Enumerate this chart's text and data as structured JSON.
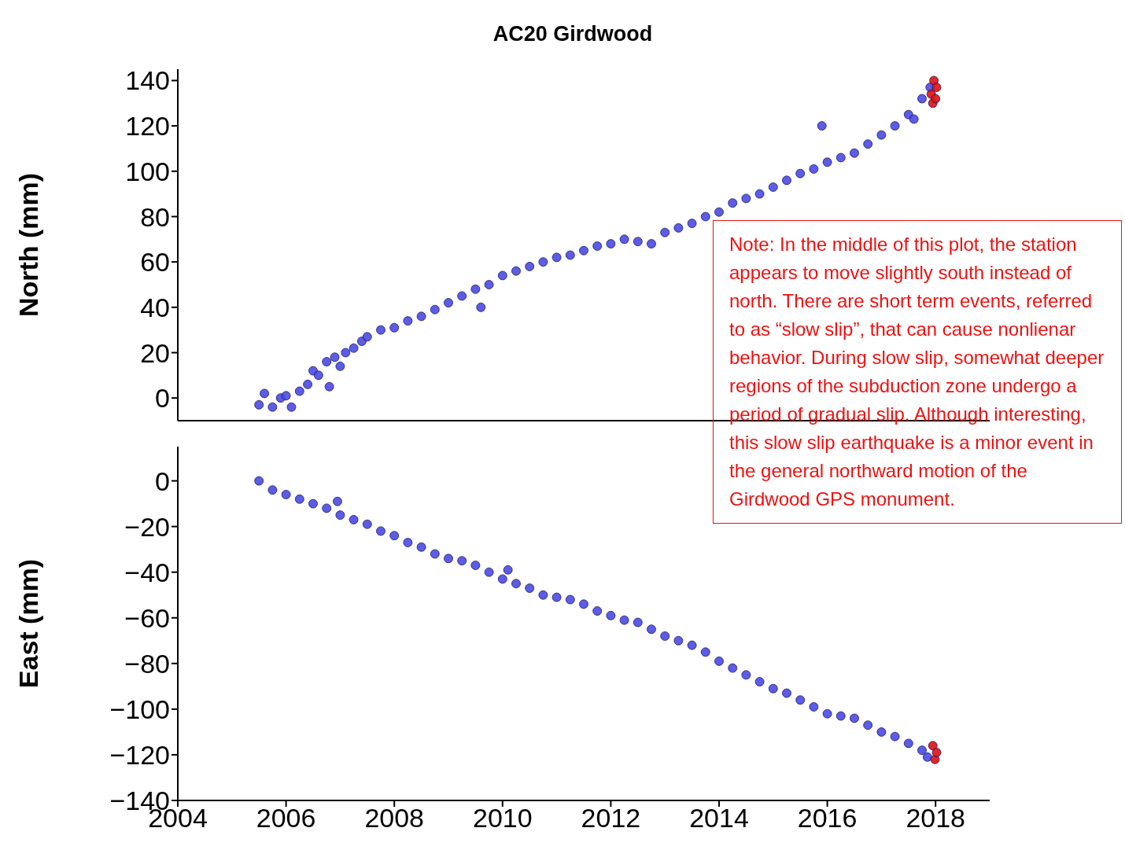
{
  "chart_data": [
    {
      "type": "scatter",
      "title": "AC20 Girdwood",
      "ylabel": "North (mm)",
      "xlim": [
        2004,
        2019
      ],
      "xticks": [
        2004,
        2006,
        2008,
        2010,
        2012,
        2014,
        2016,
        2018
      ],
      "ylim": [
        -10,
        145
      ],
      "yticks": [
        0,
        20,
        40,
        60,
        80,
        100,
        120,
        140
      ],
      "tick_labels": "y",
      "marker": "circle",
      "annotations": [
        "Note: In the middle of this plot, the station appears to move slightly south instead of north.  There are short term events, referred to as “slow slip”, that can cause nonlienar behavior.  During slow slip, somewhat deeper regions of the subduction zone undergo a period of gradual slip. Although interesting, this slow slip earthquake is a minor event in the general northward motion of the Girdwood GPS monument."
      ],
      "series": [
        {
          "color": "#4a4ae6",
          "x": [
            2005.5,
            2005.6,
            2005.75,
            2005.9,
            2006.0,
            2006.1,
            2006.25,
            2006.4,
            2006.5,
            2006.6,
            2006.75,
            2006.9,
            2007.0,
            2007.1,
            2007.25,
            2007.4,
            2007.5,
            2007.75,
            2008.0,
            2008.25,
            2008.5,
            2008.75,
            2009.0,
            2009.25,
            2009.5,
            2009.75,
            2010.0,
            2010.25,
            2010.5,
            2010.75,
            2011.0,
            2011.25,
            2011.5,
            2011.75,
            2012.0,
            2012.25,
            2012.5,
            2012.75,
            2013.0,
            2013.25,
            2013.5,
            2013.75,
            2014.0,
            2014.25,
            2014.5,
            2014.75,
            2015.0,
            2015.25,
            2015.5,
            2015.75,
            2016.0,
            2016.25,
            2016.5,
            2016.75,
            2017.0,
            2017.25,
            2017.5,
            2017.75,
            2017.9,
            2006.8,
            2009.6,
            2015.9,
            2017.6
          ],
          "values": [
            -3,
            2,
            -4,
            0,
            1,
            -4,
            3,
            6,
            12,
            10,
            16,
            18,
            14,
            20,
            22,
            25,
            27,
            30,
            31,
            34,
            36,
            39,
            42,
            45,
            48,
            50,
            54,
            56,
            58,
            60,
            62,
            63,
            65,
            67,
            68,
            70,
            69,
            68,
            73,
            75,
            77,
            80,
            82,
            86,
            88,
            90,
            93,
            96,
            99,
            101,
            104,
            106,
            108,
            112,
            116,
            120,
            125,
            132,
            137,
            5,
            40,
            120,
            123
          ]
        },
        {
          "color": "#e01010",
          "x": [
            2017.95,
            2017.92,
            2017.97,
            2018.02,
            2018.0
          ],
          "values": [
            130,
            134,
            140,
            137,
            132
          ]
        }
      ]
    },
    {
      "type": "scatter",
      "ylabel": "East (mm)",
      "xlim": [
        2004,
        2019
      ],
      "xticks": [
        2004,
        2006,
        2008,
        2010,
        2012,
        2014,
        2016,
        2018
      ],
      "ylim": [
        -140,
        15
      ],
      "yticks": [
        -140,
        -120,
        -100,
        -80,
        -60,
        -40,
        -20,
        0
      ],
      "marker": "circle",
      "series": [
        {
          "color": "#4a4ae6",
          "x": [
            2005.5,
            2005.75,
            2006.0,
            2006.25,
            2006.5,
            2006.75,
            2007.0,
            2007.25,
            2007.5,
            2007.75,
            2008.0,
            2008.25,
            2008.5,
            2008.75,
            2009.0,
            2009.25,
            2009.5,
            2009.75,
            2010.0,
            2010.25,
            2010.5,
            2010.75,
            2011.0,
            2011.25,
            2011.5,
            2011.75,
            2012.0,
            2012.25,
            2012.5,
            2012.75,
            2013.0,
            2013.25,
            2013.5,
            2013.75,
            2014.0,
            2014.25,
            2014.5,
            2014.75,
            2015.0,
            2015.25,
            2015.5,
            2015.75,
            2016.0,
            2016.25,
            2016.5,
            2016.75,
            2017.0,
            2017.25,
            2017.5,
            2017.75,
            2017.85,
            2006.95,
            2010.1
          ],
          "values": [
            0,
            -4,
            -6,
            -8,
            -10,
            -12,
            -15,
            -17,
            -19,
            -22,
            -24,
            -27,
            -29,
            -32,
            -34,
            -35,
            -37,
            -40,
            -43,
            -45,
            -47,
            -50,
            -51,
            -52,
            -54,
            -57,
            -59,
            -61,
            -62,
            -65,
            -68,
            -70,
            -72,
            -75,
            -79,
            -82,
            -85,
            -88,
            -91,
            -93,
            -96,
            -99,
            -102,
            -103,
            -104,
            -107,
            -110,
            -112,
            -115,
            -118,
            -121,
            -9,
            -39
          ]
        },
        {
          "color": "#e01010",
          "x": [
            2017.95,
            2017.99,
            2018.02
          ],
          "values": [
            -116,
            -122,
            -119
          ]
        }
      ]
    }
  ]
}
